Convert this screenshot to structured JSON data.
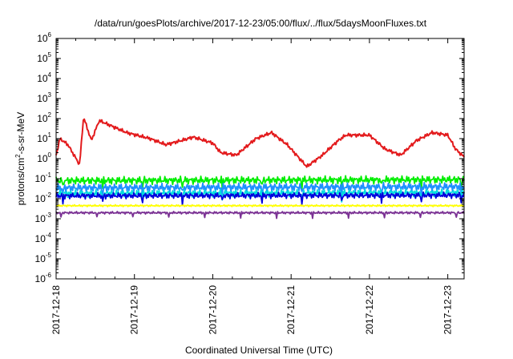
{
  "chart_data": {
    "type": "line",
    "title": "/data/run/goesPlots/archive/2017-12-23/05:00/flux/../flux/5daysMoonFluxes.txt",
    "xlabel": "Coordinated Universal Time (UTC)",
    "ylabel_parts": [
      "protons/cm",
      "2",
      "-s-sr-MeV"
    ],
    "y_scale": "log",
    "ylim": [
      1e-06,
      1000000.0
    ],
    "y_ticks": [
      {
        "base": "10",
        "exp": "6"
      },
      {
        "base": "10",
        "exp": "5"
      },
      {
        "base": "10",
        "exp": "4"
      },
      {
        "base": "10",
        "exp": "3"
      },
      {
        "base": "10",
        "exp": "2"
      },
      {
        "base": "10",
        "exp": "1"
      },
      {
        "base": "10",
        "exp": "0"
      },
      {
        "base": "10",
        "exp": "-1"
      },
      {
        "base": "10",
        "exp": "-2"
      },
      {
        "base": "10",
        "exp": "-3"
      },
      {
        "base": "10",
        "exp": "-4"
      },
      {
        "base": "10",
        "exp": "-5"
      },
      {
        "base": "10",
        "exp": "-6"
      }
    ],
    "xlim": [
      "2017-12-18 00:00",
      "2017-12-23 05:00"
    ],
    "x_ticks": [
      "2017-12-18",
      "2017-12-19",
      "2017-12-20",
      "2017-12-21",
      "2017-12-22",
      "2017-12-23"
    ],
    "grid": false,
    "legend": "none",
    "series": [
      {
        "color": "#e31a1c",
        "base": [
          [
            0,
            1.5
          ],
          [
            0.05,
            10
          ],
          [
            0.15,
            5
          ],
          [
            0.3,
            0.5
          ],
          [
            0.35,
            120
          ],
          [
            0.45,
            8
          ],
          [
            0.55,
            80
          ],
          [
            0.9,
            20
          ],
          [
            1.2,
            10
          ],
          [
            1.4,
            5
          ],
          [
            1.6,
            8
          ],
          [
            1.75,
            12
          ],
          [
            2.0,
            6
          ],
          [
            2.1,
            2
          ],
          [
            2.3,
            1.5
          ],
          [
            2.55,
            10
          ],
          [
            2.75,
            20
          ],
          [
            2.95,
            5
          ],
          [
            3.2,
            0.4
          ],
          [
            3.4,
            1.5
          ],
          [
            3.6,
            8
          ],
          [
            3.7,
            15
          ],
          [
            4.0,
            15
          ],
          [
            4.2,
            3
          ],
          [
            4.4,
            1.5
          ],
          [
            4.6,
            8
          ],
          [
            4.8,
            20
          ],
          [
            5.0,
            15
          ],
          [
            5.1,
            3
          ],
          [
            5.2083,
            1.2
          ]
        ]
      },
      {
        "color": "#00ee00",
        "base": [
          [
            0,
            0.08
          ],
          [
            5.2083,
            0.09
          ]
        ]
      },
      {
        "color": "#1e90ff",
        "base": [
          [
            0,
            0.035
          ],
          [
            5.2083,
            0.04
          ]
        ]
      },
      {
        "color": "#00dddd",
        "base": [
          [
            0,
            0.018
          ],
          [
            5.2083,
            0.02
          ]
        ]
      },
      {
        "color": "#0000dd",
        "base": [
          [
            0,
            0.014
          ],
          [
            5.2083,
            0.015
          ]
        ]
      },
      {
        "color": "#ffff00",
        "base": [
          [
            0,
            0.0045
          ],
          [
            5.2083,
            0.0045
          ]
        ]
      },
      {
        "color": "#7b3294",
        "base": [
          [
            0,
            0.002
          ],
          [
            5.2083,
            0.002
          ]
        ]
      }
    ]
  }
}
